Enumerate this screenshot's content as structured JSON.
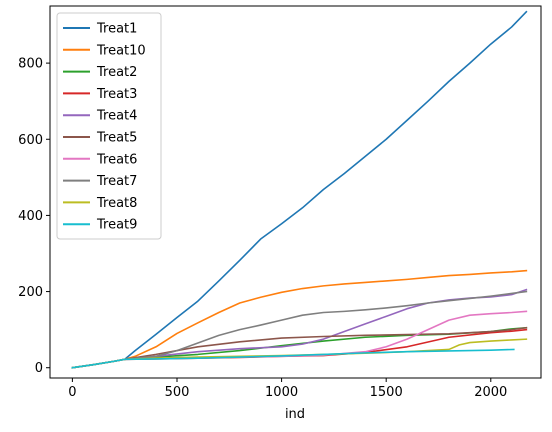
{
  "chart_data": {
    "type": "line",
    "title": "",
    "xlabel": "ind",
    "ylabel": "",
    "xlim": [
      -107,
      2240
    ],
    "ylim": [
      -27,
      950
    ],
    "xticks": [
      0,
      500,
      1000,
      1500,
      2000
    ],
    "yticks": [
      0,
      200,
      400,
      600,
      800
    ],
    "grid": false,
    "legend_position": "top-left",
    "series": [
      {
        "name": "Treat1",
        "color": "#1f77b4",
        "x": [
          0,
          100,
          200,
          250,
          300,
          400,
          500,
          600,
          700,
          800,
          900,
          1000,
          1100,
          1200,
          1300,
          1400,
          1500,
          1600,
          1700,
          1800,
          1900,
          2000,
          2100,
          2170
        ],
        "y": [
          0,
          8,
          17,
          22,
          45,
          88,
          132,
          175,
          228,
          282,
          338,
          378,
          420,
          468,
          510,
          555,
          600,
          650,
          700,
          752,
          800,
          850,
          895,
          935
        ]
      },
      {
        "name": "Treat10",
        "color": "#ff7f0e",
        "x": [
          0,
          100,
          200,
          250,
          300,
          400,
          500,
          600,
          700,
          800,
          900,
          1000,
          1100,
          1200,
          1300,
          1400,
          1500,
          1600,
          1700,
          1800,
          1900,
          2000,
          2100,
          2170
        ],
        "y": [
          0,
          8,
          17,
          22,
          30,
          55,
          90,
          118,
          145,
          170,
          185,
          198,
          208,
          215,
          220,
          224,
          228,
          232,
          237,
          242,
          245,
          249,
          252,
          255
        ]
      },
      {
        "name": "Treat2",
        "color": "#2ca02c",
        "x": [
          0,
          100,
          200,
          250,
          400,
          600,
          800,
          1000,
          1200,
          1400,
          1600,
          1800,
          2000,
          2100,
          2170
        ],
        "y": [
          0,
          8,
          17,
          22,
          28,
          35,
          45,
          58,
          70,
          80,
          85,
          88,
          95,
          102,
          105
        ]
      },
      {
        "name": "Treat3",
        "color": "#d62728",
        "x": [
          0,
          100,
          200,
          250,
          400,
          600,
          800,
          1000,
          1200,
          1400,
          1600,
          1800,
          2000,
          2100,
          2170
        ],
        "y": [
          0,
          8,
          17,
          22,
          23,
          25,
          27,
          30,
          32,
          40,
          55,
          80,
          92,
          96,
          100
        ]
      },
      {
        "name": "Treat4",
        "color": "#9467bd",
        "x": [
          0,
          100,
          200,
          250,
          400,
          600,
          800,
          1000,
          1100,
          1200,
          1300,
          1400,
          1500,
          1600,
          1700,
          1800,
          1900,
          2000,
          2100,
          2170
        ],
        "y": [
          0,
          8,
          17,
          22,
          30,
          42,
          50,
          55,
          62,
          75,
          95,
          115,
          135,
          155,
          170,
          178,
          183,
          186,
          192,
          205
        ]
      },
      {
        "name": "Treat5",
        "color": "#8c564b",
        "x": [
          0,
          100,
          200,
          250,
          400,
          600,
          800,
          1000,
          1200,
          1400,
          1600,
          1800,
          2000,
          2100,
          2170
        ],
        "y": [
          0,
          8,
          17,
          22,
          35,
          55,
          68,
          78,
          82,
          85,
          87,
          89,
          95,
          100,
          105
        ]
      },
      {
        "name": "Treat6",
        "color": "#e377c2",
        "x": [
          0,
          100,
          200,
          250,
          400,
          600,
          800,
          1000,
          1200,
          1400,
          1500,
          1600,
          1700,
          1800,
          1900,
          2000,
          2100,
          2170
        ],
        "y": [
          0,
          8,
          17,
          22,
          24,
          26,
          28,
          30,
          33,
          42,
          55,
          75,
          100,
          125,
          138,
          142,
          145,
          148
        ]
      },
      {
        "name": "Treat7",
        "color": "#7f7f7f",
        "x": [
          0,
          100,
          200,
          250,
          400,
          500,
          600,
          700,
          800,
          900,
          1000,
          1100,
          1200,
          1300,
          1400,
          1500,
          1600,
          1700,
          1800,
          1900,
          2000,
          2100,
          2170
        ],
        "y": [
          0,
          8,
          17,
          22,
          30,
          45,
          65,
          85,
          100,
          112,
          125,
          138,
          145,
          148,
          152,
          157,
          163,
          170,
          176,
          182,
          188,
          195,
          200
        ]
      },
      {
        "name": "Treat8",
        "color": "#bcbd22",
        "x": [
          0,
          100,
          200,
          250,
          400,
          600,
          800,
          1000,
          1200,
          1400,
          1600,
          1800,
          1850,
          1900,
          2000,
          2100,
          2170
        ],
        "y": [
          0,
          8,
          17,
          22,
          25,
          28,
          30,
          32,
          35,
          38,
          42,
          48,
          60,
          66,
          70,
          73,
          75
        ]
      },
      {
        "name": "Treat9",
        "color": "#17becf",
        "x": [
          0,
          100,
          200,
          250,
          400,
          600,
          800,
          1000,
          1200,
          1400,
          1600,
          1800,
          2000,
          2110
        ],
        "y": [
          0,
          8,
          17,
          22,
          23,
          25,
          28,
          31,
          35,
          39,
          42,
          44,
          46,
          48
        ]
      }
    ]
  }
}
